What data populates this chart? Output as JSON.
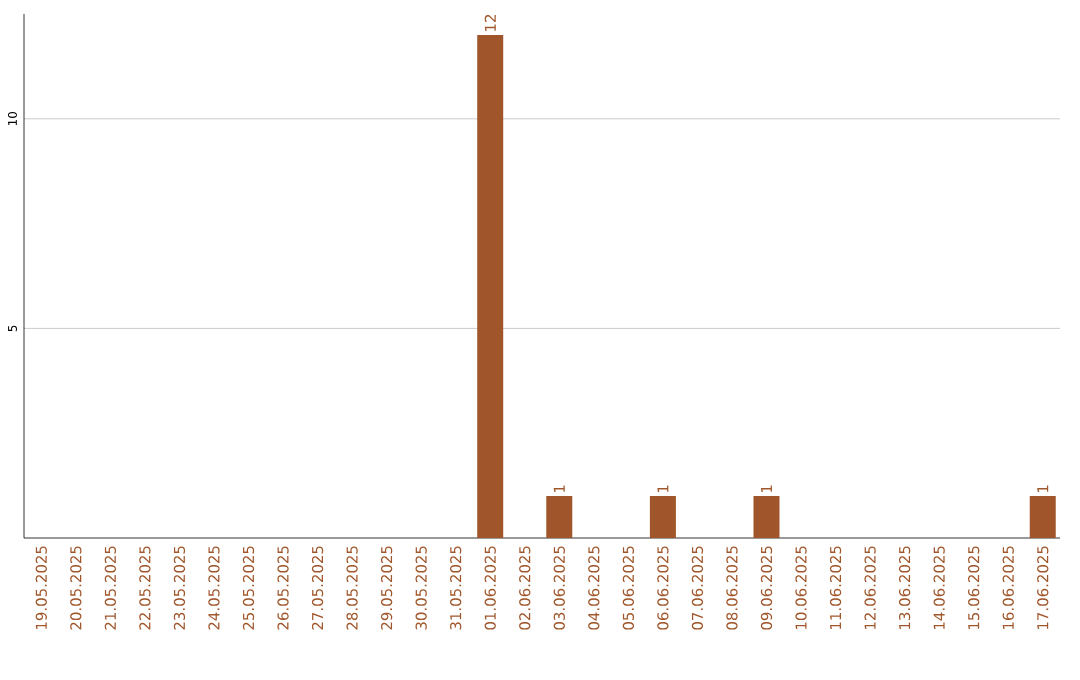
{
  "chart_data": {
    "type": "bar",
    "categories": [
      "19.05.2025",
      "20.05.2025",
      "21.05.2025",
      "22.05.2025",
      "23.05.2025",
      "24.05.2025",
      "25.05.2025",
      "26.05.2025",
      "27.05.2025",
      "28.05.2025",
      "29.05.2025",
      "30.05.2025",
      "31.05.2025",
      "01.06.2025",
      "02.06.2025",
      "03.06.2025",
      "04.06.2025",
      "05.06.2025",
      "06.06.2025",
      "07.06.2025",
      "08.06.2025",
      "09.06.2025",
      "10.06.2025",
      "11.06.2025",
      "12.06.2025",
      "13.06.2025",
      "14.06.2025",
      "15.06.2025",
      "16.06.2025",
      "17.06.2025"
    ],
    "values": [
      0,
      0,
      0,
      0,
      0,
      0,
      0,
      0,
      0,
      0,
      0,
      0,
      0,
      12,
      0,
      1,
      0,
      0,
      1,
      0,
      0,
      1,
      0,
      0,
      0,
      0,
      0,
      0,
      0,
      1
    ],
    "value_labels": [
      null,
      null,
      null,
      null,
      null,
      null,
      null,
      null,
      null,
      null,
      null,
      null,
      null,
      "12",
      null,
      "1",
      null,
      null,
      "1",
      null,
      null,
      "1",
      null,
      null,
      null,
      null,
      null,
      null,
      null,
      "1"
    ],
    "color": "#a0562a",
    "ylim": [
      0,
      12.5
    ],
    "yticks": [
      5,
      10
    ],
    "grid": "y"
  }
}
